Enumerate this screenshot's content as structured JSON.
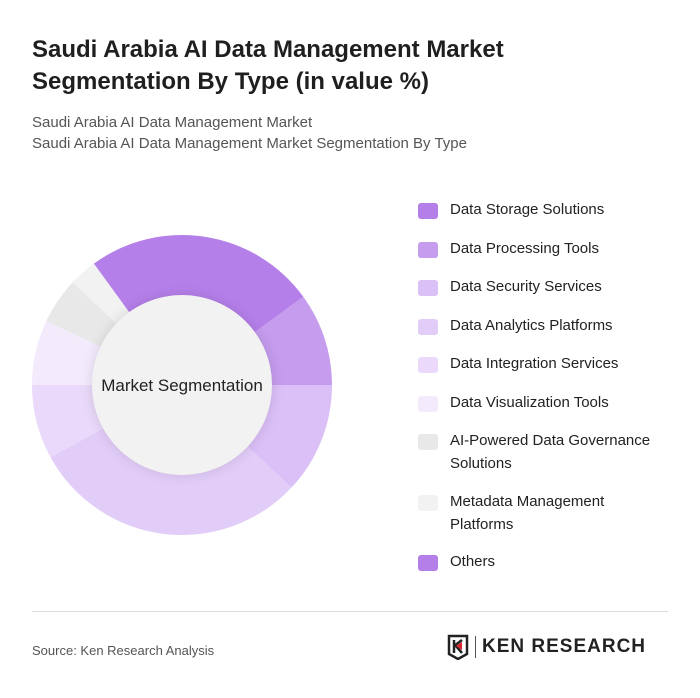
{
  "title": "Saudi Arabia AI Data Management Market Segmentation By Type (in value %)",
  "subtitle1": "Saudi Arabia AI Data Management Market",
  "subtitle2": "Saudi Arabia AI Data Management Market Segmentation By Type",
  "source": "Source: Ken Research Analysis",
  "logo_text": "KEN RESEARCH",
  "chart_data": {
    "type": "pie",
    "donut": true,
    "center_label": "Market Segmentation",
    "legend_position": "right",
    "unit": "%",
    "categories": [
      "Data Storage Solutions",
      "Data Processing Tools",
      "Data Security Services",
      "Data Analytics Platforms",
      "Data Integration Services",
      "Data Visualization Tools",
      "AI-Powered Data Governance Solutions",
      "Metadata Management Platforms",
      "Others"
    ],
    "values": [
      25,
      10,
      12,
      30,
      8,
      7,
      5,
      3,
      0
    ],
    "colors": [
      "#b57fea",
      "#c59cee",
      "#dbbff7",
      "#e2cdf8",
      "#ead9fa",
      "#f3ebfc",
      "#e8e8e8",
      "#f2f2f2",
      "#b57fea"
    ]
  }
}
